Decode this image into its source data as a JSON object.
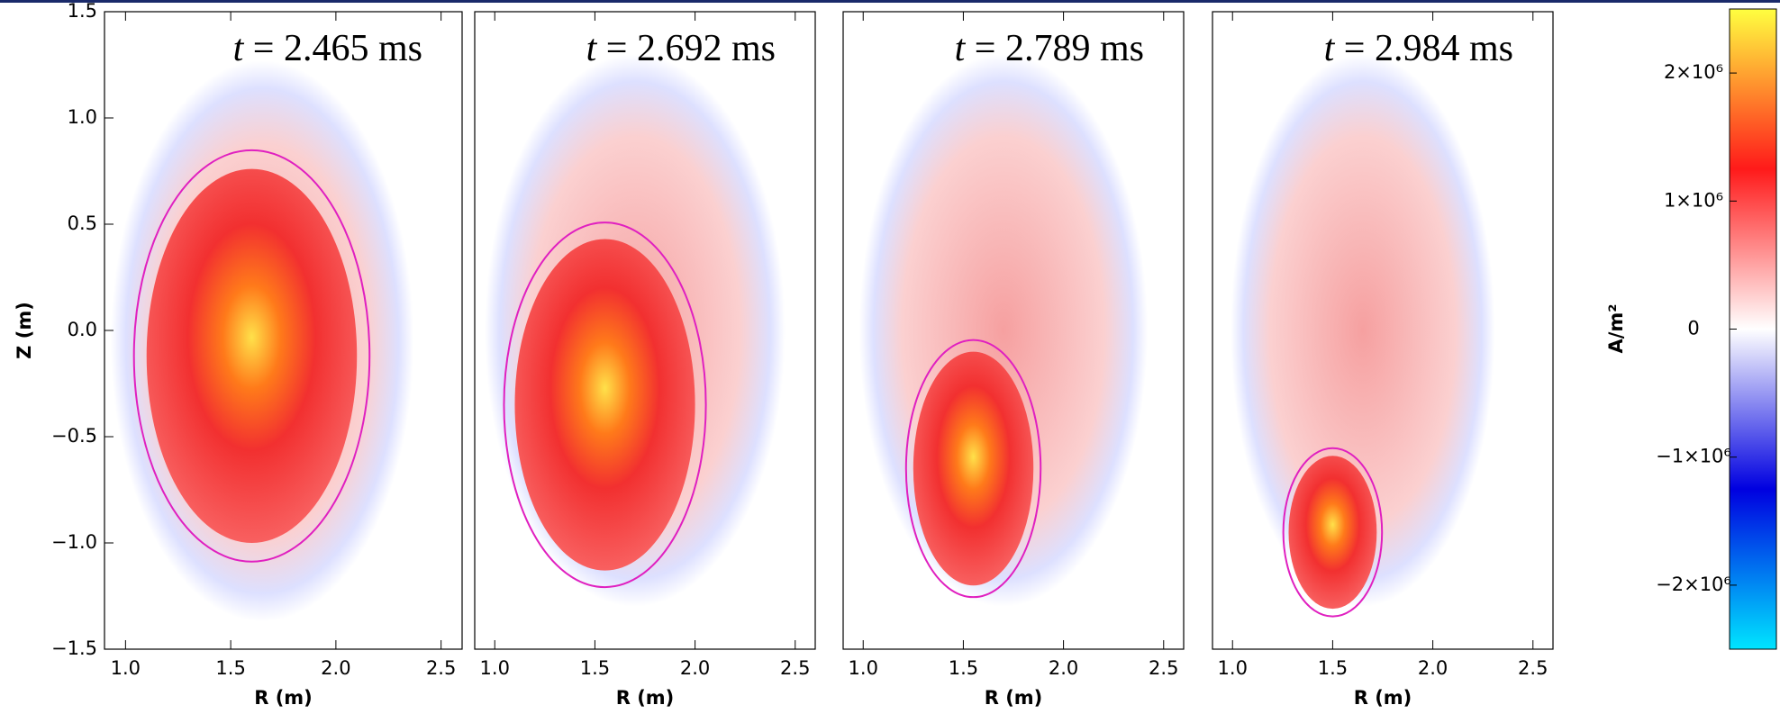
{
  "chart_data": [
    {
      "type": "heatmap",
      "title": "t = 2.465 ms",
      "title_color": "#f26c1c",
      "xlabel": "R (m)",
      "ylabel": "Z (m)",
      "xlim": [
        0.9,
        2.6
      ],
      "ylim": [
        -1.5,
        1.5
      ],
      "xticks": [
        "1.0",
        "1.5",
        "2.0",
        "2.5"
      ],
      "yticks": [
        {
          "value": 1.5,
          "label": "1.5"
        },
        {
          "value": 1.0,
          "label": "1.0"
        },
        {
          "value": 0.5,
          "label": "0.5"
        },
        {
          "value": 0.0,
          "label": "0.0"
        },
        {
          "value": -0.5,
          "label": "−0.5"
        },
        {
          "value": -1.0,
          "label": "−1.0"
        },
        {
          "value": -1.5,
          "label": "−1.5"
        }
      ]
    },
    {
      "type": "heatmap",
      "title": "t = 2.692 ms",
      "title_color": "#1e8a1e",
      "xlabel": "R (m)",
      "xlim": [
        0.9,
        2.6
      ],
      "ylim": [
        -1.5,
        1.5
      ],
      "xticks": [
        "1.0",
        "1.5",
        "2.0",
        "2.5"
      ]
    },
    {
      "type": "heatmap",
      "title": "t = 2.789 ms",
      "title_color": "#4a7fe0",
      "xlabel": "R (m)",
      "xlim": [
        0.9,
        2.6
      ],
      "ylim": [
        -1.5,
        1.5
      ],
      "xticks": [
        "1.0",
        "1.5",
        "2.0",
        "2.5"
      ]
    },
    {
      "type": "heatmap",
      "title": "t = 2.984 ms",
      "title_color": "#6a1a6e",
      "xlabel": "R (m)",
      "xlim": [
        0.9,
        2.6
      ],
      "ylim": [
        -1.5,
        1.5
      ],
      "xticks": [
        "1.0",
        "1.5",
        "2.0",
        "2.5"
      ]
    },
    {
      "type": "colorbar",
      "label": "A/m²",
      "ylim": [
        -2500000,
        2500000
      ],
      "colors": [
        "#00e5ff",
        "#0000e0",
        "#ffffff",
        "#ff1a1a",
        "#ffff40"
      ],
      "yticks": [
        {
          "value": 2000000,
          "label": "2×10⁶"
        },
        {
          "value": 1000000,
          "label": "1×10⁶"
        },
        0,
        {
          "value": -1000000,
          "label": "−1×10⁶"
        },
        {
          "value": -2000000,
          "label": "−2×10⁶"
        }
      ]
    }
  ]
}
